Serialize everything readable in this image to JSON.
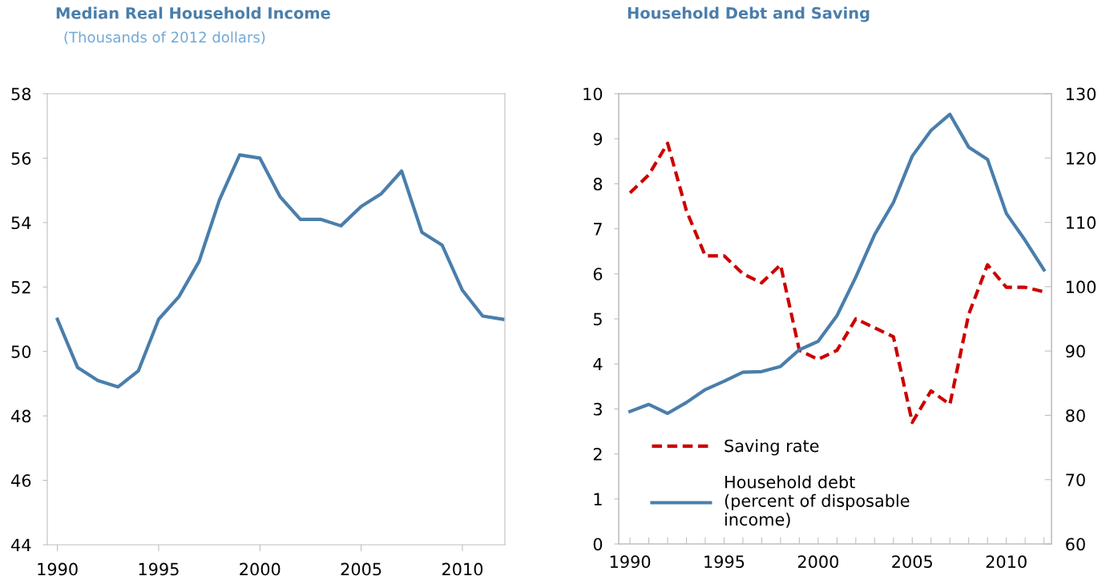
{
  "chart_data": [
    {
      "type": "line",
      "title": "Median Real Household Income",
      "subtitle": "(Thousands of 2012 dollars)",
      "x": [
        1990,
        1991,
        1992,
        1993,
        1994,
        1995,
        1996,
        1997,
        1998,
        1999,
        2000,
        2001,
        2002,
        2003,
        2004,
        2005,
        2006,
        2007,
        2008,
        2009,
        2010,
        2011,
        2012
      ],
      "series": [
        {
          "color": "#4a7eab",
          "line_style": "solid",
          "values": [
            51.0,
            49.5,
            49.1,
            48.9,
            49.4,
            51.0,
            51.7,
            52.8,
            54.7,
            56.1,
            56.0,
            54.8,
            54.1,
            54.1,
            53.9,
            54.5,
            54.9,
            55.6,
            53.7,
            53.3,
            51.9,
            51.1,
            51.0
          ]
        }
      ],
      "xlim": [
        1989.5,
        2012.1
      ],
      "xticks": [
        1990,
        1995,
        2000,
        2005,
        2010
      ],
      "ylim": [
        44,
        58
      ],
      "yticks": [
        44,
        46,
        48,
        50,
        52,
        54,
        56,
        58
      ],
      "grid": false,
      "legend": false
    },
    {
      "type": "line",
      "title": "Household Debt and Saving",
      "x": [
        1990,
        1991,
        1992,
        1993,
        1994,
        1995,
        1996,
        1997,
        1998,
        1999,
        2000,
        2001,
        2002,
        2003,
        2004,
        2005,
        2006,
        2007,
        2008,
        2009,
        2010,
        2011,
        2012
      ],
      "series": [
        {
          "name": "Saving rate",
          "color": "#cc0000",
          "line_style": "dashed",
          "axis": "y",
          "values": [
            7.8,
            8.2,
            8.9,
            7.4,
            6.4,
            6.4,
            6.0,
            5.8,
            6.2,
            4.3,
            4.1,
            4.3,
            5.0,
            4.8,
            4.6,
            2.7,
            3.4,
            3.1,
            5.1,
            6.2,
            5.7,
            5.7,
            5.6
          ]
        },
        {
          "name": "Household debt\n(percent of disposable\nincome)",
          "color": "#4a7eab",
          "line_style": "solid",
          "axis": "y2",
          "values": [
            80.6,
            81.7,
            80.3,
            82.0,
            84.0,
            85.3,
            86.7,
            86.8,
            87.6,
            90.2,
            91.5,
            95.5,
            101.5,
            108.1,
            113.1,
            120.3,
            124.3,
            126.8,
            121.7,
            119.8,
            111.4,
            107.2,
            102.6
          ]
        }
      ],
      "xlim": [
        1989.4,
        2012.4
      ],
      "xticks": [
        1990,
        {
          "value": 1991,
          "label": null
        },
        {
          "value": 1992,
          "label": null
        },
        {
          "value": 1993,
          "label": null
        },
        {
          "value": 1994,
          "label": null
        },
        1995,
        {
          "value": 1996,
          "label": null
        },
        {
          "value": 1997,
          "label": null
        },
        {
          "value": 1998,
          "label": null
        },
        {
          "value": 1999,
          "label": null
        },
        2000,
        {
          "value": 2001,
          "label": null
        },
        {
          "value": 2002,
          "label": null
        },
        {
          "value": 2003,
          "label": null
        },
        {
          "value": 2004,
          "label": null
        },
        2005,
        {
          "value": 2006,
          "label": null
        },
        {
          "value": 2007,
          "label": null
        },
        {
          "value": 2008,
          "label": null
        },
        {
          "value": 2009,
          "label": null
        },
        2010,
        {
          "value": 2011,
          "label": null
        },
        {
          "value": 2012,
          "label": null
        }
      ],
      "ylim": [
        0,
        10
      ],
      "yticks": [
        0,
        1,
        2,
        3,
        4,
        5,
        6,
        7,
        8,
        9,
        10
      ],
      "y2lim": [
        60,
        130
      ],
      "y2ticks": [
        60,
        70,
        80,
        90,
        100,
        110,
        120,
        130
      ],
      "grid": false,
      "legend": "bottom"
    }
  ]
}
